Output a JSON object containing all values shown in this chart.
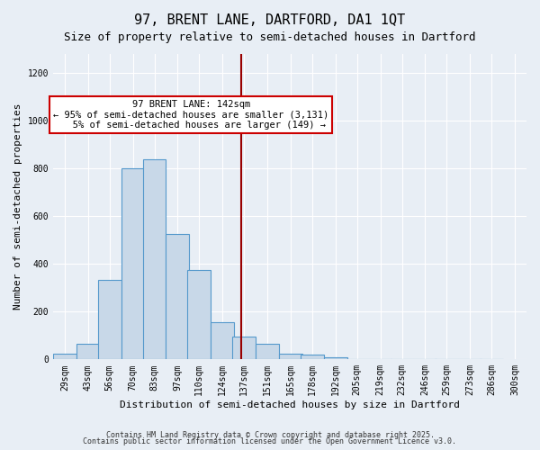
{
  "title": "97, BRENT LANE, DARTFORD, DA1 1QT",
  "subtitle": "Size of property relative to semi-detached houses in Dartford",
  "xlabel": "Distribution of semi-detached houses by size in Dartford",
  "ylabel": "Number of semi-detached properties",
  "bin_labels": [
    "29sqm",
    "43sqm",
    "56sqm",
    "70sqm",
    "83sqm",
    "97sqm",
    "110sqm",
    "124sqm",
    "137sqm",
    "151sqm",
    "165sqm",
    "178sqm",
    "192sqm",
    "205sqm",
    "219sqm",
    "232sqm",
    "246sqm",
    "259sqm",
    "273sqm",
    "286sqm",
    "300sqm"
  ],
  "bin_edges": [
    29,
    43,
    56,
    70,
    83,
    97,
    110,
    124,
    137,
    151,
    165,
    178,
    192,
    205,
    219,
    232,
    246,
    259,
    273,
    286,
    300
  ],
  "bar_heights": [
    25,
    65,
    335,
    800,
    840,
    525,
    375,
    155,
    95,
    65,
    25,
    20,
    10,
    0,
    0,
    0,
    0,
    0,
    0,
    0
  ],
  "bar_color": "#c8d8e8",
  "bar_edge_color": "#5599cc",
  "vline_x": 142,
  "vline_color": "#990000",
  "annotation_text": "97 BRENT LANE: 142sqm\n← 95% of semi-detached houses are smaller (3,131)\n   5% of semi-detached houses are larger (149) →",
  "annotation_box_color": "#ffffff",
  "annotation_box_edge": "#cc0000",
  "footer_line1": "Contains HM Land Registry data © Crown copyright and database right 2025.",
  "footer_line2": "Contains public sector information licensed under the Open Government Licence v3.0.",
  "ylim": [
    0,
    1280
  ],
  "background_color": "#e8eef5",
  "grid_color": "#ffffff",
  "title_fontsize": 11,
  "subtitle_fontsize": 9,
  "axis_label_fontsize": 8,
  "tick_fontsize": 7,
  "footer_fontsize": 6
}
